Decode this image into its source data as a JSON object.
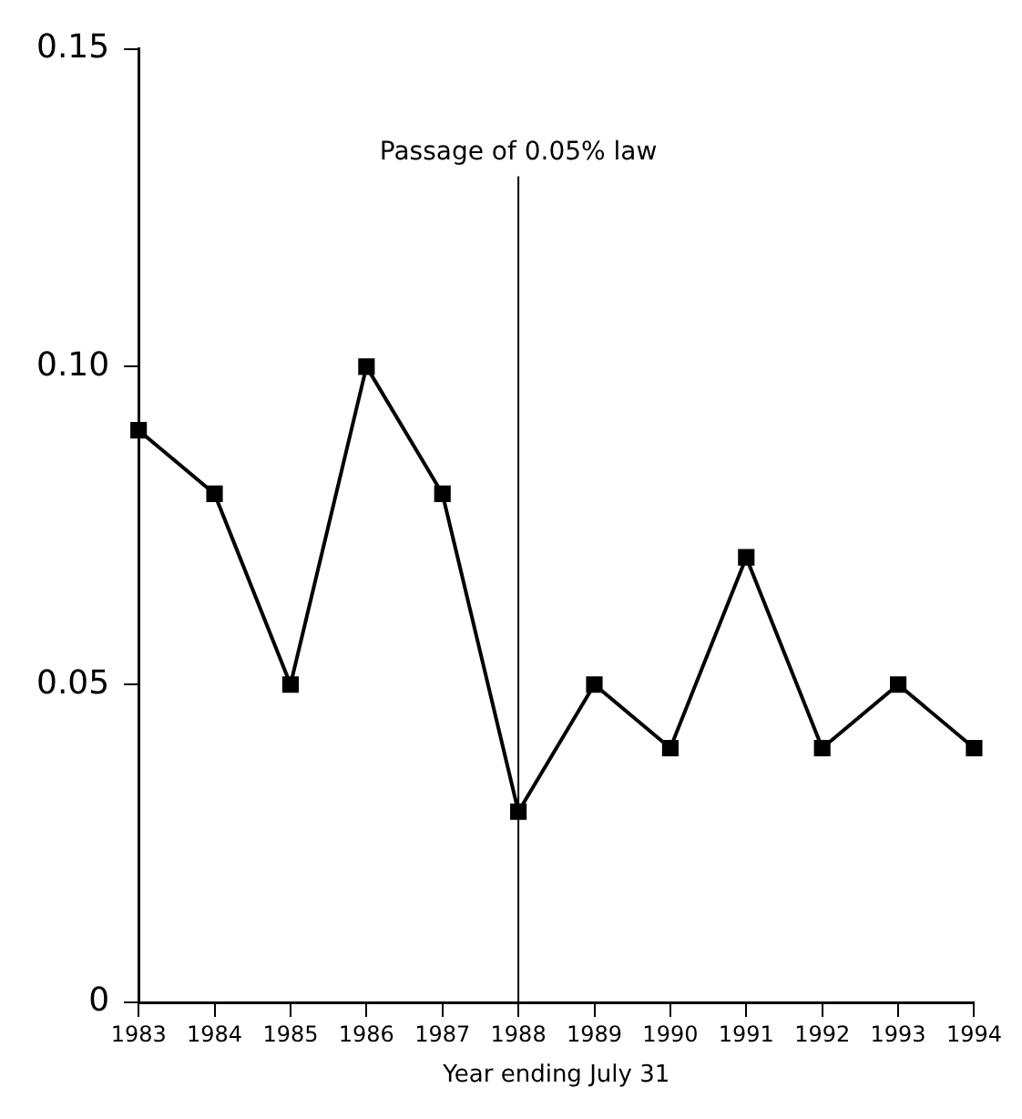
{
  "chart_data": {
    "type": "line",
    "xlabel": "Year ending July 31",
    "categories": [
      "1983",
      "1984",
      "1985",
      "1986",
      "1987",
      "1988",
      "1989",
      "1990",
      "1991",
      "1992",
      "1993",
      "1994"
    ],
    "series": [
      {
        "color": "#000000",
        "values": [
          0.09,
          0.08,
          0.05,
          0.1,
          0.08,
          0.03,
          0.05,
          0.04,
          0.07,
          0.04,
          0.05,
          0.04
        ]
      }
    ],
    "ylim": [
      0,
      0.15
    ],
    "yticks": [
      0,
      0.05,
      {
        "value": 0.1,
        "label": "0.10"
      },
      0.15
    ],
    "ref_lines": [
      {
        "axis": "x",
        "value": "1988",
        "label": "Passage of 0.05% law",
        "color": "#000000"
      }
    ],
    "grid": false,
    "legend": false,
    "marker": "square",
    "line_style": "solid"
  }
}
